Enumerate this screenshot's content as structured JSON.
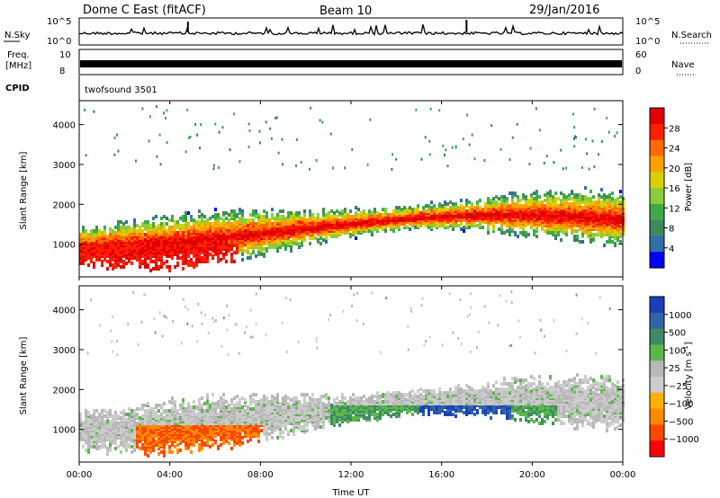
{
  "header": {
    "station": "Dome C East (fitACF)",
    "beam": "Beam 10",
    "date": "29/Jan/2016"
  },
  "top_panels": {
    "nsky_label": "N.Sky",
    "nsky_ticks": [
      "10^5",
      "10^0"
    ],
    "nsearch_label": "N.Search",
    "nsearch_ticks": [
      "10^5",
      "10^0"
    ],
    "freq_label_1": "Freq.",
    "freq_label_2": "[MHz]",
    "freq_ticks": [
      "10",
      "8"
    ],
    "nave_label": "Nave",
    "nave_ticks": [
      "60",
      "0"
    ],
    "cpid_label": "CPID",
    "cpid_value": "twofsound 3501"
  },
  "colors": {
    "power": [
      "#0000ff",
      "#2f6fa8",
      "#3f8a5a",
      "#3faa4a",
      "#8ccc3a",
      "#d8d000",
      "#ffa000",
      "#ff6a00",
      "#ff1e00",
      "#e00000"
    ],
    "velocity": [
      "#1c3fb8",
      "#2f66aa",
      "#3f8a66",
      "#5ab74a",
      "#b8b8b8",
      "#cccccc",
      "#ffb000",
      "#ff8a00",
      "#ff4500",
      "#ff0000"
    ]
  },
  "chart_data": [
    {
      "type": "heatmap",
      "name": "power",
      "xlabel": "",
      "ylabel": "Slant Range [km]",
      "y_ticks": [
        1000,
        2000,
        3000,
        4000
      ],
      "ylim": [
        180,
        4600
      ],
      "xlim": [
        0,
        24
      ],
      "colorbar_label": "Power [dB]",
      "colorbar_ticks": [
        4,
        8,
        12,
        16,
        20,
        24,
        28
      ],
      "colorbar_range": [
        0,
        30
      ],
      "notes": "Scatter concentrated between 600 and 2600 km, strongest (red) near 700-1500 km around 00-06 UT and 09-12 UT"
    },
    {
      "type": "heatmap",
      "name": "velocity",
      "xlabel": "Time UT",
      "ylabel": "Slant Range [km]",
      "y_ticks": [
        1000,
        2000,
        3000,
        4000
      ],
      "ylim": [
        180,
        4600
      ],
      "xlim": [
        0,
        24
      ],
      "x_ticks": [
        "00:00",
        "04:00",
        "08:00",
        "12:00",
        "16:00",
        "20:00",
        "00:00"
      ],
      "colorbar_label": "Velocity [m s^-1]",
      "colorbar_ticks": [
        1000,
        500,
        100,
        25,
        -25,
        -100,
        -500,
        -1000
      ]
    }
  ],
  "axes": {
    "x_ticks": [
      "00:00",
      "04:00",
      "08:00",
      "12:00",
      "16:00",
      "20:00",
      "00:00"
    ],
    "x_label": "Time UT",
    "y_label": "Slant Range [km]",
    "y_ticks": [
      "1000",
      "2000",
      "3000",
      "4000"
    ],
    "power_cb_label": "Power [dB]",
    "power_cb_ticks": [
      "28",
      "24",
      "20",
      "16",
      "12",
      "8",
      "4"
    ],
    "vel_cb_label_main": "Velocity [m s",
    "vel_cb_label_sup": "-1",
    "vel_cb_label_end": "]",
    "vel_cb_ticks": [
      "1000",
      "500",
      "100",
      "25",
      "−25",
      "−100",
      "−500",
      "−1000"
    ]
  }
}
